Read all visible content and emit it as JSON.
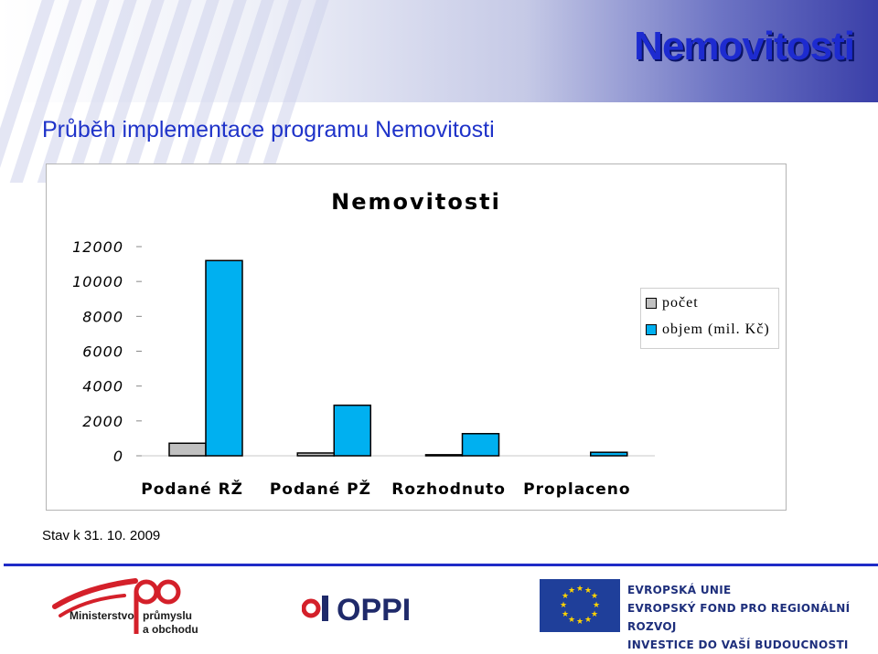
{
  "header": {
    "brand": "Nemovitosti",
    "slide_title": "Průběh implementace programu Nemovitosti"
  },
  "note": "Stav k 31. 10. 2009",
  "chart_data": {
    "type": "bar",
    "title": "Nemovitosti",
    "categories": [
      "Podané RŽ",
      "Podané PŽ",
      "Rozhodnuto",
      "Proplaceno"
    ],
    "series": [
      {
        "name": "počet",
        "color": "#c0c0c0",
        "values": [
          720,
          160,
          60,
          0
        ]
      },
      {
        "name": "objem (mil. Kč)",
        "color": "#00b0f0",
        "values": [
          11200,
          2900,
          1270,
          200
        ]
      }
    ],
    "ylim": [
      0,
      12000
    ],
    "yticks": [
      "0",
      "2000",
      "4000",
      "6000",
      "8000",
      "10000",
      "12000"
    ],
    "grid": false,
    "legend_position": "right"
  },
  "logos": {
    "mpo": {
      "word1": "Ministerstvo",
      "word2": "průmyslu",
      "word3": "a obchodu"
    },
    "oppi": "OPPI",
    "eu": {
      "line1": "EVROPSKÁ UNIE",
      "line2": "EVROPSKÝ FOND PRO REGIONÁLNÍ ROZVOJ",
      "line3": "INVESTICE DO VAŠÍ BUDOUCNOSTI"
    }
  }
}
